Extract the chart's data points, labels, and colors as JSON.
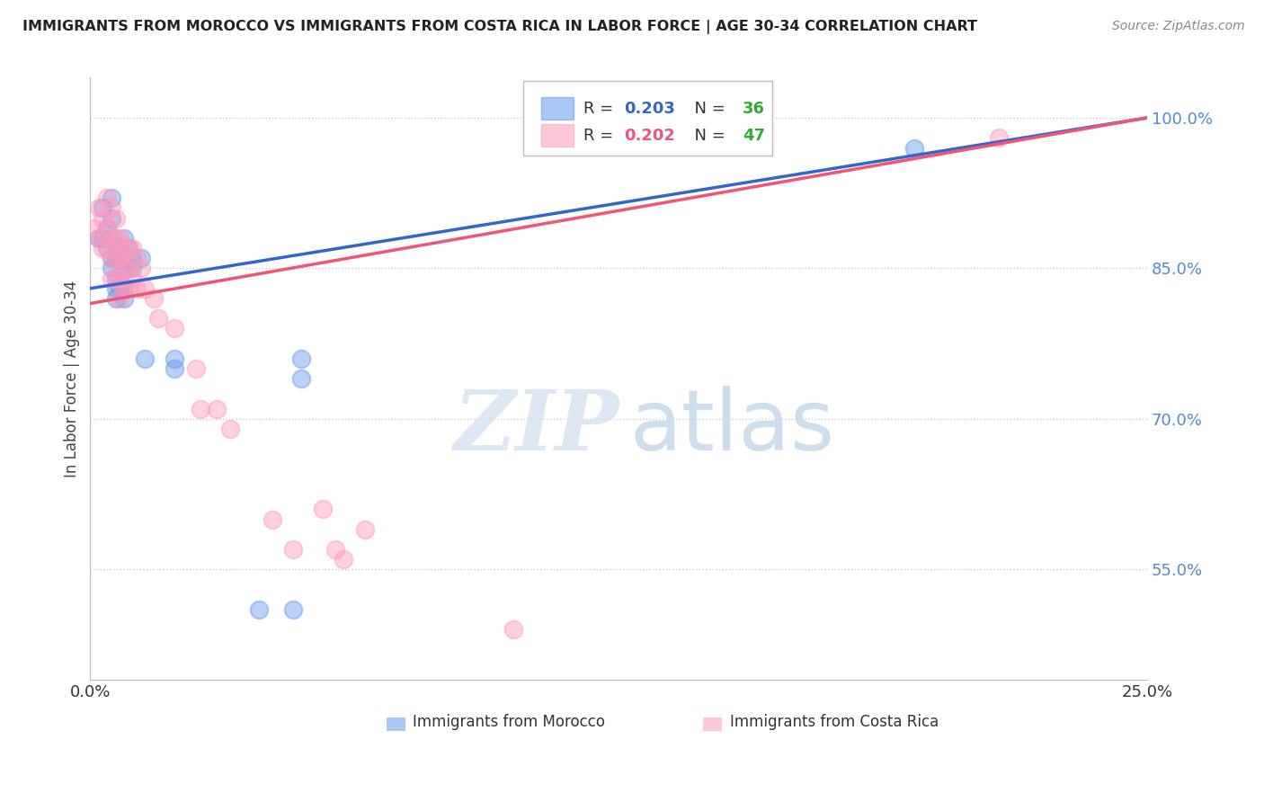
{
  "title": "IMMIGRANTS FROM MOROCCO VS IMMIGRANTS FROM COSTA RICA IN LABOR FORCE | AGE 30-34 CORRELATION CHART",
  "source": "Source: ZipAtlas.com",
  "ylabel": "In Labor Force | Age 30-34",
  "xlim": [
    0.0,
    0.25
  ],
  "ylim": [
    0.44,
    1.04
  ],
  "morocco_r": 0.203,
  "morocco_n": 36,
  "costa_rica_r": 0.202,
  "costa_rica_n": 47,
  "morocco_color": "#6699EE",
  "costa_rica_color": "#FF99BB",
  "morocco_line_color": "#3366CC",
  "costa_rica_line_color": "#EE5577",
  "legend_r_color": "#3366CC",
  "legend_n_color": "#33AA33",
  "legend_cr_r_color": "#EE5577",
  "ytick_color": "#5588CC",
  "morocco_points_x": [
    0.002,
    0.003,
    0.003,
    0.004,
    0.004,
    0.005,
    0.005,
    0.005,
    0.005,
    0.005,
    0.006,
    0.006,
    0.006,
    0.006,
    0.006,
    0.007,
    0.007,
    0.007,
    0.007,
    0.008,
    0.008,
    0.008,
    0.008,
    0.009,
    0.009,
    0.01,
    0.01,
    0.012,
    0.013,
    0.02,
    0.04,
    0.048,
    0.05,
    0.05,
    0.195,
    0.02
  ],
  "morocco_points_y": [
    0.88,
    0.91,
    0.88,
    0.89,
    0.87,
    0.92,
    0.9,
    0.88,
    0.86,
    0.85,
    0.87,
    0.86,
    0.84,
    0.83,
    0.82,
    0.87,
    0.86,
    0.84,
    0.83,
    0.88,
    0.85,
    0.83,
    0.82,
    0.87,
    0.85,
    0.86,
    0.85,
    0.86,
    0.76,
    0.76,
    0.51,
    0.51,
    0.76,
    0.74,
    0.97,
    0.75
  ],
  "costa_rica_points_x": [
    0.001,
    0.002,
    0.002,
    0.003,
    0.003,
    0.004,
    0.004,
    0.004,
    0.005,
    0.005,
    0.005,
    0.005,
    0.006,
    0.006,
    0.006,
    0.006,
    0.007,
    0.007,
    0.007,
    0.007,
    0.008,
    0.008,
    0.008,
    0.009,
    0.009,
    0.009,
    0.01,
    0.01,
    0.011,
    0.011,
    0.012,
    0.013,
    0.015,
    0.016,
    0.02,
    0.025,
    0.026,
    0.03,
    0.033,
    0.043,
    0.048,
    0.055,
    0.058,
    0.06,
    0.065,
    0.1,
    0.215
  ],
  "costa_rica_points_y": [
    0.89,
    0.91,
    0.88,
    0.9,
    0.87,
    0.92,
    0.89,
    0.87,
    0.91,
    0.88,
    0.86,
    0.84,
    0.9,
    0.88,
    0.86,
    0.84,
    0.88,
    0.86,
    0.84,
    0.82,
    0.87,
    0.85,
    0.83,
    0.87,
    0.85,
    0.83,
    0.87,
    0.84,
    0.86,
    0.83,
    0.85,
    0.83,
    0.82,
    0.8,
    0.79,
    0.75,
    0.71,
    0.71,
    0.69,
    0.6,
    0.57,
    0.61,
    0.57,
    0.56,
    0.59,
    0.49,
    0.98
  ],
  "watermark_zip": "ZIP",
  "watermark_atlas": "atlas",
  "background_color": "#ffffff",
  "grid_color": "#cccccc",
  "bottom_legend_morocco": "Immigrants from Morocco",
  "bottom_legend_costa_rica": "Immigrants from Costa Rica"
}
